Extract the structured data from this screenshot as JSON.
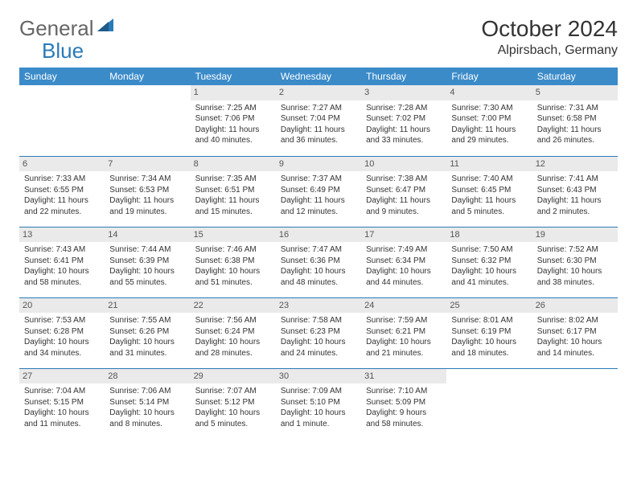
{
  "logo": {
    "text1": "General",
    "text2": "Blue"
  },
  "title": "October 2024",
  "location": "Alpirsbach, Germany",
  "colors": {
    "header_bg": "#3b8bc9",
    "header_text": "#ffffff",
    "daynum_bg": "#eaeaea",
    "row_border": "#2a7ab8",
    "logo_blue": "#2a7ab8",
    "text": "#333333"
  },
  "weekdays": [
    "Sunday",
    "Monday",
    "Tuesday",
    "Wednesday",
    "Thursday",
    "Friday",
    "Saturday"
  ],
  "weeks": [
    [
      null,
      null,
      {
        "n": "1",
        "sr": "7:25 AM",
        "ss": "7:06 PM",
        "dl": "11 hours and 40 minutes."
      },
      {
        "n": "2",
        "sr": "7:27 AM",
        "ss": "7:04 PM",
        "dl": "11 hours and 36 minutes."
      },
      {
        "n": "3",
        "sr": "7:28 AM",
        "ss": "7:02 PM",
        "dl": "11 hours and 33 minutes."
      },
      {
        "n": "4",
        "sr": "7:30 AM",
        "ss": "7:00 PM",
        "dl": "11 hours and 29 minutes."
      },
      {
        "n": "5",
        "sr": "7:31 AM",
        "ss": "6:58 PM",
        "dl": "11 hours and 26 minutes."
      }
    ],
    [
      {
        "n": "6",
        "sr": "7:33 AM",
        "ss": "6:55 PM",
        "dl": "11 hours and 22 minutes."
      },
      {
        "n": "7",
        "sr": "7:34 AM",
        "ss": "6:53 PM",
        "dl": "11 hours and 19 minutes."
      },
      {
        "n": "8",
        "sr": "7:35 AM",
        "ss": "6:51 PM",
        "dl": "11 hours and 15 minutes."
      },
      {
        "n": "9",
        "sr": "7:37 AM",
        "ss": "6:49 PM",
        "dl": "11 hours and 12 minutes."
      },
      {
        "n": "10",
        "sr": "7:38 AM",
        "ss": "6:47 PM",
        "dl": "11 hours and 9 minutes."
      },
      {
        "n": "11",
        "sr": "7:40 AM",
        "ss": "6:45 PM",
        "dl": "11 hours and 5 minutes."
      },
      {
        "n": "12",
        "sr": "7:41 AM",
        "ss": "6:43 PM",
        "dl": "11 hours and 2 minutes."
      }
    ],
    [
      {
        "n": "13",
        "sr": "7:43 AM",
        "ss": "6:41 PM",
        "dl": "10 hours and 58 minutes."
      },
      {
        "n": "14",
        "sr": "7:44 AM",
        "ss": "6:39 PM",
        "dl": "10 hours and 55 minutes."
      },
      {
        "n": "15",
        "sr": "7:46 AM",
        "ss": "6:38 PM",
        "dl": "10 hours and 51 minutes."
      },
      {
        "n": "16",
        "sr": "7:47 AM",
        "ss": "6:36 PM",
        "dl": "10 hours and 48 minutes."
      },
      {
        "n": "17",
        "sr": "7:49 AM",
        "ss": "6:34 PM",
        "dl": "10 hours and 44 minutes."
      },
      {
        "n": "18",
        "sr": "7:50 AM",
        "ss": "6:32 PM",
        "dl": "10 hours and 41 minutes."
      },
      {
        "n": "19",
        "sr": "7:52 AM",
        "ss": "6:30 PM",
        "dl": "10 hours and 38 minutes."
      }
    ],
    [
      {
        "n": "20",
        "sr": "7:53 AM",
        "ss": "6:28 PM",
        "dl": "10 hours and 34 minutes."
      },
      {
        "n": "21",
        "sr": "7:55 AM",
        "ss": "6:26 PM",
        "dl": "10 hours and 31 minutes."
      },
      {
        "n": "22",
        "sr": "7:56 AM",
        "ss": "6:24 PM",
        "dl": "10 hours and 28 minutes."
      },
      {
        "n": "23",
        "sr": "7:58 AM",
        "ss": "6:23 PM",
        "dl": "10 hours and 24 minutes."
      },
      {
        "n": "24",
        "sr": "7:59 AM",
        "ss": "6:21 PM",
        "dl": "10 hours and 21 minutes."
      },
      {
        "n": "25",
        "sr": "8:01 AM",
        "ss": "6:19 PM",
        "dl": "10 hours and 18 minutes."
      },
      {
        "n": "26",
        "sr": "8:02 AM",
        "ss": "6:17 PM",
        "dl": "10 hours and 14 minutes."
      }
    ],
    [
      {
        "n": "27",
        "sr": "7:04 AM",
        "ss": "5:15 PM",
        "dl": "10 hours and 11 minutes."
      },
      {
        "n": "28",
        "sr": "7:06 AM",
        "ss": "5:14 PM",
        "dl": "10 hours and 8 minutes."
      },
      {
        "n": "29",
        "sr": "7:07 AM",
        "ss": "5:12 PM",
        "dl": "10 hours and 5 minutes."
      },
      {
        "n": "30",
        "sr": "7:09 AM",
        "ss": "5:10 PM",
        "dl": "10 hours and 1 minute."
      },
      {
        "n": "31",
        "sr": "7:10 AM",
        "ss": "5:09 PM",
        "dl": "9 hours and 58 minutes."
      },
      null,
      null
    ]
  ],
  "labels": {
    "sunrise": "Sunrise: ",
    "sunset": "Sunset: ",
    "daylight": "Daylight: "
  }
}
